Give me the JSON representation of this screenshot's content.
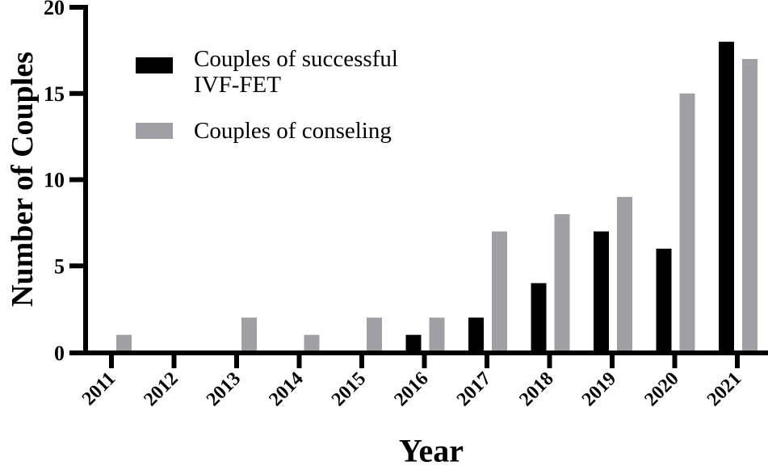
{
  "chart_data": {
    "type": "bar",
    "title": "",
    "xlabel": "Year",
    "ylabel": "Number of Couples",
    "ylim": [
      0,
      20
    ],
    "yticks": [
      0,
      5,
      10,
      15,
      20
    ],
    "grid": false,
    "legend_position": "upper-left",
    "categories": [
      "2011",
      "2012",
      "2013",
      "2014",
      "2015",
      "2016",
      "2017",
      "2018",
      "2019",
      "2020",
      "2021"
    ],
    "series": [
      {
        "name": "Couples of successful IVF-FET",
        "color": "#000000",
        "values": [
          0,
          0,
          0,
          0,
          0,
          1,
          2,
          4,
          7,
          6,
          18
        ]
      },
      {
        "name": "Couples of conseling",
        "color": "#a0a0a4",
        "values": [
          1,
          0,
          2,
          1,
          2,
          2,
          7,
          8,
          9,
          15,
          17
        ]
      }
    ]
  },
  "legend": {
    "items": [
      {
        "line1": "Couples of successful",
        "line2": "IVF-FET",
        "color": "#000000"
      },
      {
        "line1": "Couples of conseling",
        "line2": "",
        "color": "#a0a0a4"
      }
    ]
  }
}
